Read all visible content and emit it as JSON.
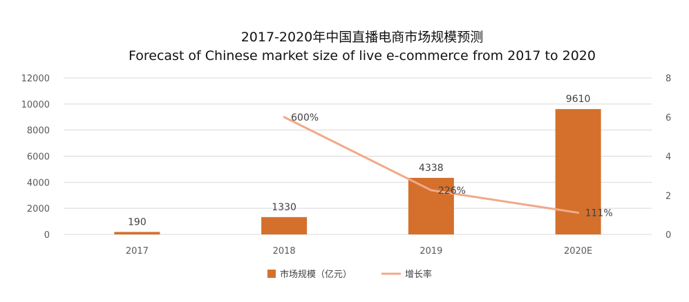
{
  "chart_data": {
    "type": "bar",
    "title": "2017-2020年中国直播电商市场规模预测",
    "subtitle": "Forecast of Chinese market size of live e-commerce from 2017 to 2020",
    "categories": [
      "2017",
      "2018",
      "2019",
      "2020E"
    ],
    "series": [
      {
        "name": "市场规模（亿元）",
        "type": "bar",
        "axis": "left",
        "values": [
          190,
          1330,
          4338,
          9610
        ],
        "labels": [
          "190",
          "1330",
          "4338",
          "9610"
        ],
        "color": "#D4702C"
      },
      {
        "name": "增长率",
        "type": "line",
        "axis": "right",
        "values": [
          null,
          6.0,
          2.26,
          1.11
        ],
        "labels": [
          null,
          "600%",
          "226%",
          "111%"
        ],
        "color": "#F0A98A"
      }
    ],
    "y_left": {
      "min": 0,
      "max": 12000,
      "ticks": [
        "0",
        "2000",
        "4000",
        "6000",
        "8000",
        "10000",
        "12000"
      ]
    },
    "y_right": {
      "min": 0,
      "max": 8,
      "ticks": [
        "0",
        "2",
        "4",
        "6",
        "8"
      ]
    },
    "grid": true,
    "legend": "bottom"
  }
}
